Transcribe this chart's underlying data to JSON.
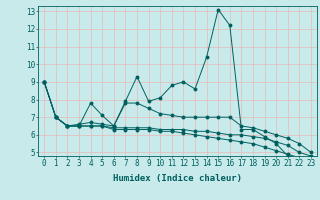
{
  "x": [
    0,
    1,
    2,
    3,
    4,
    5,
    6,
    7,
    8,
    9,
    10,
    11,
    12,
    13,
    14,
    15,
    16,
    17,
    18,
    19,
    20,
    21,
    22,
    23
  ],
  "line1": [
    9,
    7,
    6.5,
    6.5,
    7.8,
    7.1,
    6.5,
    7.9,
    9.3,
    7.9,
    8.1,
    8.8,
    9.0,
    8.6,
    10.4,
    13.1,
    12.2,
    6.3,
    6.3,
    5.9,
    5.5,
    4.8,
    4.7,
    4.7
  ],
  "line2": [
    9,
    7,
    6.5,
    6.6,
    6.7,
    6.6,
    6.5,
    7.8,
    7.8,
    7.5,
    7.2,
    7.1,
    7.0,
    7.0,
    7.0,
    7.0,
    7.0,
    6.5,
    6.4,
    6.2,
    6.0,
    5.8,
    5.5,
    5.0
  ],
  "line3": [
    9,
    7,
    6.5,
    6.5,
    6.5,
    6.5,
    6.4,
    6.4,
    6.4,
    6.4,
    6.3,
    6.3,
    6.3,
    6.2,
    6.2,
    6.1,
    6.0,
    6.0,
    5.9,
    5.8,
    5.6,
    5.4,
    5.0,
    4.8
  ],
  "line4": [
    9,
    7,
    6.5,
    6.5,
    6.5,
    6.5,
    6.3,
    6.3,
    6.3,
    6.3,
    6.2,
    6.2,
    6.1,
    6.0,
    5.9,
    5.8,
    5.7,
    5.6,
    5.5,
    5.3,
    5.1,
    4.9,
    4.7,
    4.7
  ],
  "color": "#006060",
  "bg_color": "#c8eaea",
  "grid_color": "#e8b8b8",
  "xlabel": "Humidex (Indice chaleur)",
  "xlim": [
    -0.5,
    23.5
  ],
  "ylim": [
    4.8,
    13.3
  ],
  "yticks": [
    5,
    6,
    7,
    8,
    9,
    10,
    11,
    12,
    13
  ],
  "xticks": [
    0,
    1,
    2,
    3,
    4,
    5,
    6,
    7,
    8,
    9,
    10,
    11,
    12,
    13,
    14,
    15,
    16,
    17,
    18,
    19,
    20,
    21,
    22,
    23
  ],
  "tick_fontsize": 5.5,
  "xlabel_fontsize": 6.5
}
